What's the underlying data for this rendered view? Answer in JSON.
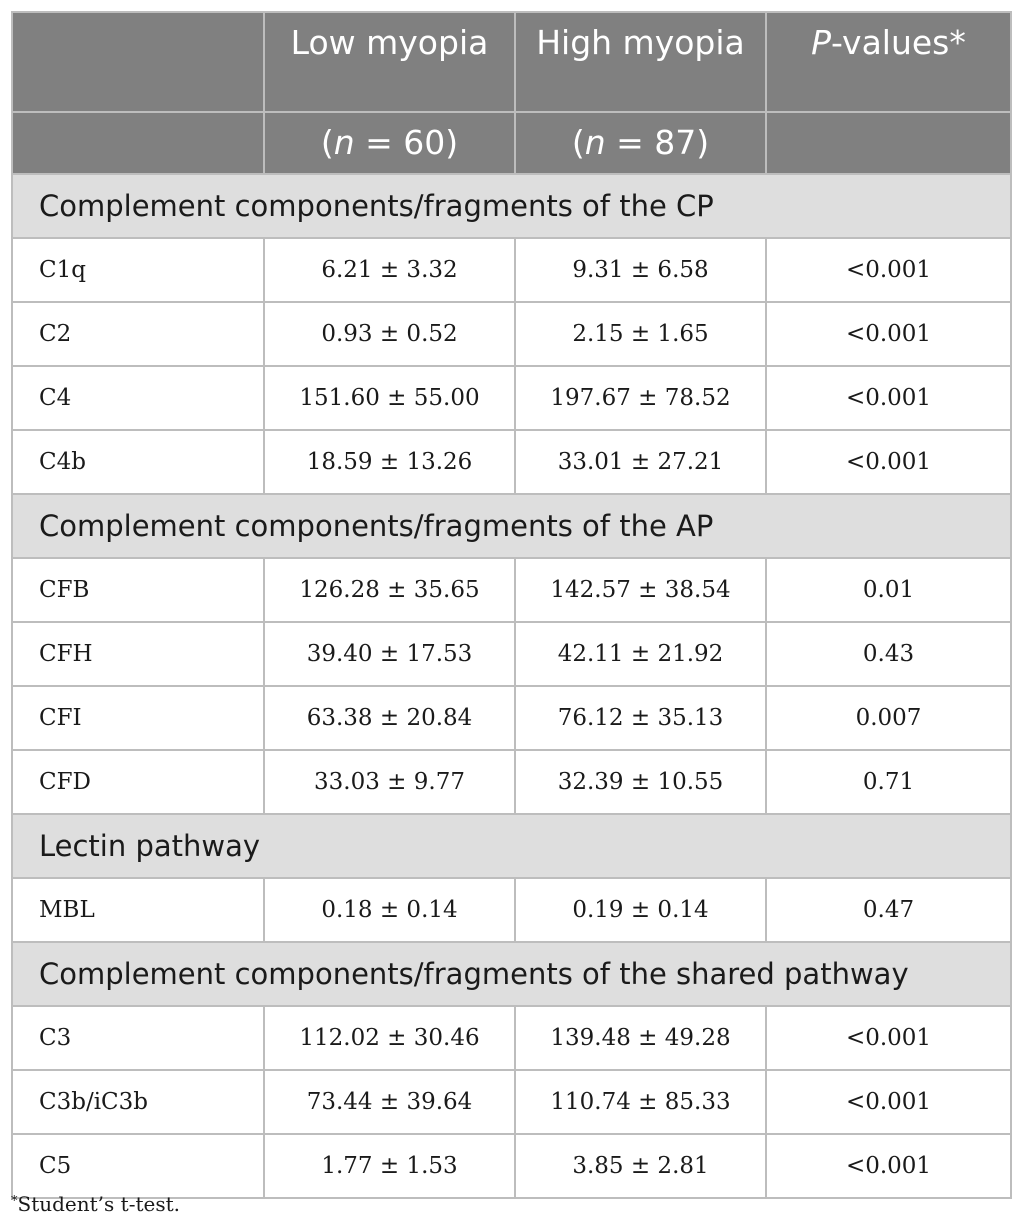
{
  "header": {
    "col_low": "Low myopia",
    "col_high": "High myopia",
    "col_p_italic": "P",
    "col_p_rest": "-values*",
    "n_low_prefix": "(",
    "n_low_n": "n",
    "n_low_rest": " = 60)",
    "n_high_prefix": "(",
    "n_high_n": "n",
    "n_high_rest": " = 87)"
  },
  "sections": [
    {
      "title": "Complement components/fragments of the CP",
      "rows": [
        {
          "name": "C1q",
          "low": "6.21 ± 3.32",
          "high": "9.31 ± 6.58",
          "p": "<0.001"
        },
        {
          "name": "C2",
          "low": "0.93 ± 0.52",
          "high": "2.15 ± 1.65",
          "p": "<0.001"
        },
        {
          "name": "C4",
          "low": "151.60 ± 55.00",
          "high": "197.67 ± 78.52",
          "p": "<0.001"
        },
        {
          "name": "C4b",
          "low": "18.59 ± 13.26",
          "high": "33.01 ± 27.21",
          "p": "<0.001"
        }
      ]
    },
    {
      "title": "Complement components/fragments of the AP",
      "rows": [
        {
          "name": "CFB",
          "low": "126.28 ± 35.65",
          "high": "142.57 ± 38.54",
          "p": "0.01"
        },
        {
          "name": "CFH",
          "low": "39.40 ± 17.53",
          "high": "42.11 ± 21.92",
          "p": "0.43"
        },
        {
          "name": "CFI",
          "low": "63.38 ± 20.84",
          "high": "76.12 ± 35.13",
          "p": "0.007"
        },
        {
          "name": "CFD",
          "low": "33.03 ± 9.77",
          "high": "32.39 ± 10.55",
          "p": "0.71"
        }
      ]
    },
    {
      "title": "Lectin pathway",
      "rows": [
        {
          "name": "MBL",
          "low": "0.18 ± 0.14",
          "high": "0.19 ± 0.14",
          "p": "0.47"
        }
      ]
    },
    {
      "title": "Complement components/fragments of the shared pathway",
      "rows": [
        {
          "name": "C3",
          "low": "112.02 ± 30.46",
          "high": "139.48 ± 49.28",
          "p": "<0.001"
        },
        {
          "name": "C3b/iC3b",
          "low": "73.44 ± 39.64",
          "high": "110.74 ± 85.33",
          "p": "<0.001"
        },
        {
          "name": "C5",
          "low": "1.77 ± 1.53",
          "high": "3.85 ± 2.81",
          "p": "<0.001"
        }
      ]
    }
  ],
  "footnote": {
    "mark": "*",
    "text": "Student’s t-test."
  }
}
